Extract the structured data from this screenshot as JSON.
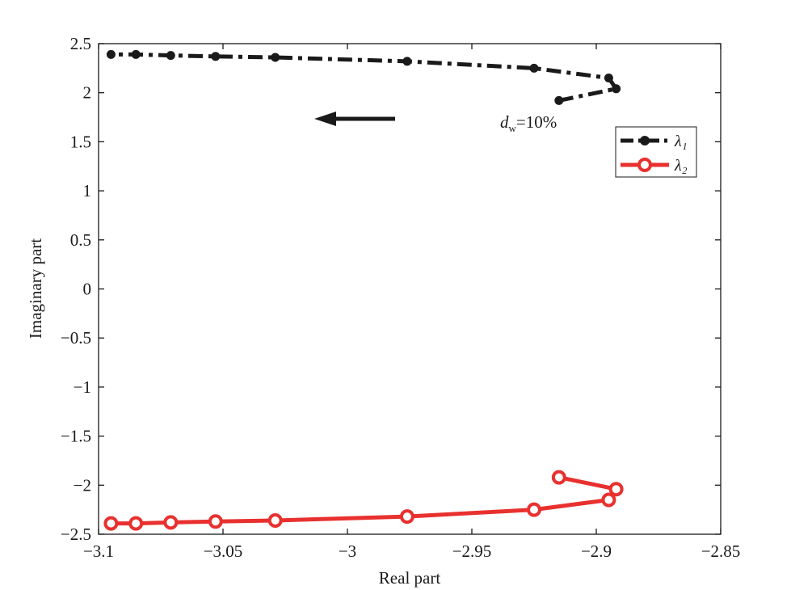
{
  "chart_data": {
    "type": "line",
    "xlabel": "Real part",
    "ylabel": "Imaginary part",
    "xlim": [
      -3.1,
      -2.85
    ],
    "ylim": [
      -2.5,
      2.5
    ],
    "xticks": [
      -3.1,
      -3.05,
      -3.0,
      -2.95,
      -2.9,
      -2.85
    ],
    "xtick_labels": [
      "−3.1",
      "−3.05",
      "−3",
      "−2.95",
      "−2.9",
      "−2.85"
    ],
    "yticks": [
      2.5,
      2,
      1.5,
      1,
      0.5,
      0,
      -0.5,
      -1,
      -1.5,
      -2,
      -2.5
    ],
    "ytick_labels": [
      "2.5",
      "2",
      "1.5",
      "1",
      "0.5",
      "0",
      "−0.5",
      "−1",
      "−1.5",
      "−2",
      "−2.5"
    ],
    "grid": false,
    "legend_position": "upper-right",
    "series": [
      {
        "name": "λ₁",
        "color": "#1a1a1a",
        "line_style": "dash-dot",
        "marker": "filled-circle",
        "x": [
          -2.915,
          -2.892,
          -2.895,
          -2.925,
          -2.976,
          -3.029,
          -3.053,
          -3.071,
          -3.085,
          -3.095
        ],
        "y": [
          1.92,
          2.04,
          2.15,
          2.25,
          2.32,
          2.36,
          2.37,
          2.38,
          2.39,
          2.39
        ]
      },
      {
        "name": "λ₂",
        "color": "#e8312f",
        "line_style": "solid",
        "marker": "open-circle",
        "x": [
          -2.915,
          -2.892,
          -2.895,
          -2.925,
          -2.976,
          -3.029,
          -3.053,
          -3.071,
          -3.085,
          -3.095
        ],
        "y": [
          -1.92,
          -2.04,
          -2.15,
          -2.25,
          -2.32,
          -2.36,
          -2.37,
          -2.38,
          -2.39,
          -2.39
        ]
      }
    ],
    "annotations": {
      "dw_symbol": "d",
      "dw_subscript": "w",
      "dw_value": "=10%",
      "arrow_direction": "left"
    }
  }
}
